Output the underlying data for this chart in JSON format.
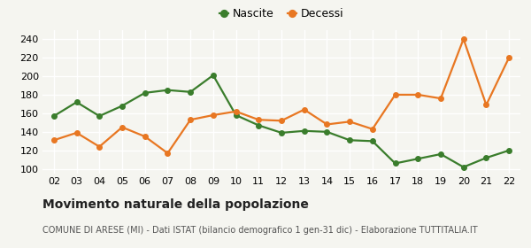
{
  "years": [
    "02",
    "03",
    "04",
    "05",
    "06",
    "07",
    "08",
    "09",
    "10",
    "11",
    "12",
    "13",
    "14",
    "15",
    "16",
    "17",
    "18",
    "19",
    "20",
    "21",
    "22"
  ],
  "nascite": [
    157,
    172,
    157,
    168,
    182,
    185,
    183,
    201,
    158,
    147,
    139,
    141,
    140,
    131,
    130,
    106,
    111,
    116,
    102,
    112,
    120
  ],
  "decessi": [
    131,
    139,
    124,
    145,
    135,
    117,
    153,
    158,
    162,
    153,
    152,
    164,
    148,
    151,
    143,
    180,
    180,
    176,
    240,
    169,
    220
  ],
  "nascite_color": "#3a7d2c",
  "decessi_color": "#e87722",
  "marker": "o",
  "marker_size": 4,
  "linewidth": 1.6,
  "title": "Movimento naturale della popolazione",
  "subtitle": "COMUNE DI ARESE (MI) - Dati ISTAT (bilancio demografico 1 gen-31 dic) - Elaborazione TUTTITALIA.IT",
  "legend_nascite": "Nascite",
  "legend_decessi": "Decessi",
  "ylim": [
    95,
    250
  ],
  "yticks": [
    100,
    120,
    140,
    160,
    180,
    200,
    220,
    240
  ],
  "background_color": "#f5f5f0",
  "grid_color": "#ffffff",
  "title_fontsize": 10,
  "subtitle_fontsize": 7,
  "legend_fontsize": 9,
  "tick_fontsize": 8
}
